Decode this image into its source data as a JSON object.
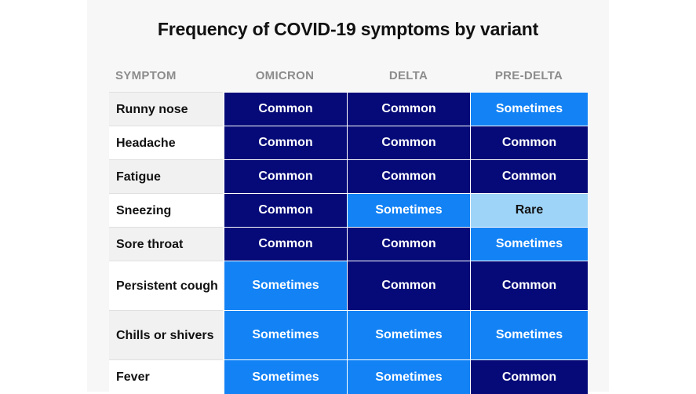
{
  "chart_data": {
    "type": "table",
    "title": "Frequency of COVID-19 symptoms by variant",
    "columns": [
      "SYMPTOM",
      "OMICRON",
      "DELTA",
      "PRE-DELTA"
    ],
    "rows": [
      {
        "symptom": "Runny nose",
        "values": [
          "Common",
          "Common",
          "Sometimes"
        ]
      },
      {
        "symptom": "Headache",
        "values": [
          "Common",
          "Common",
          "Common"
        ]
      },
      {
        "symptom": "Fatigue",
        "values": [
          "Common",
          "Common",
          "Common"
        ]
      },
      {
        "symptom": "Sneezing",
        "values": [
          "Common",
          "Sometimes",
          "Rare"
        ]
      },
      {
        "symptom": "Sore throat",
        "values": [
          "Common",
          "Common",
          "Sometimes"
        ]
      },
      {
        "symptom": "Persistent cough",
        "values": [
          "Sometimes",
          "Common",
          "Common"
        ]
      },
      {
        "symptom": "Chills or shivers",
        "values": [
          "Sometimes",
          "Sometimes",
          "Sometimes"
        ]
      },
      {
        "symptom": "Fever",
        "values": [
          "Sometimes",
          "Sometimes",
          "Common"
        ]
      }
    ],
    "colors": {
      "Common": "#050a78",
      "Sometimes": "#1282f5",
      "Rare": "#9ed4f8"
    },
    "text_colors": {
      "Common": "#ffffff",
      "Sometimes": "#ffffff",
      "Rare": "#111111"
    }
  }
}
